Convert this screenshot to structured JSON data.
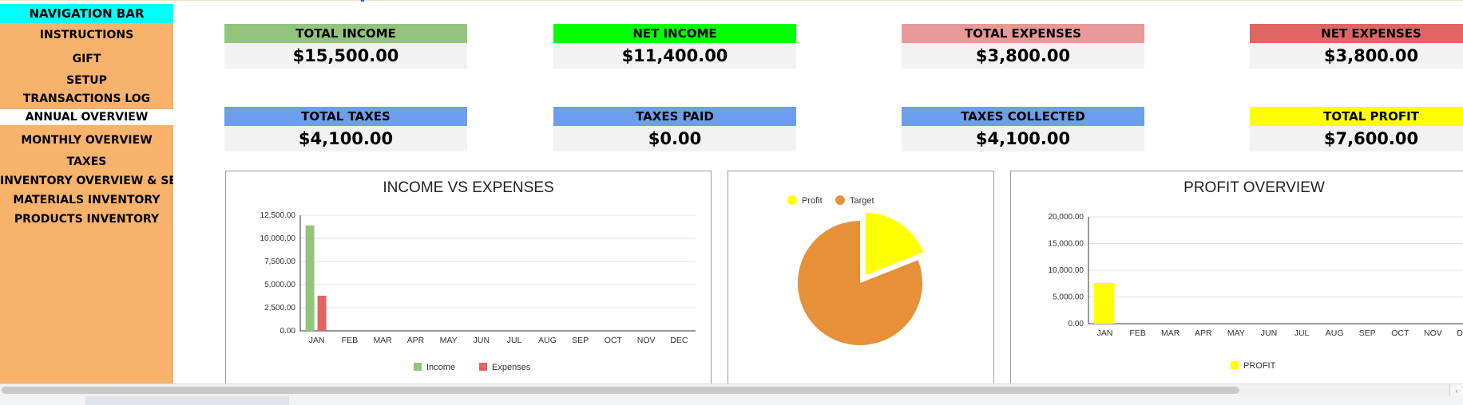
{
  "sidebar": {
    "title": "NAVIGATION BAR",
    "items": [
      {
        "label": "INSTRUCTIONS"
      },
      {
        "label": "GIFT"
      },
      {
        "label": "SETUP"
      },
      {
        "label": "TRANSACTIONS LOG"
      },
      {
        "label": "ANNUAL OVERVIEW"
      },
      {
        "label": "MONTHLY OVERVIEW"
      },
      {
        "label": "TAXES"
      },
      {
        "label": "INVENTORY OVERVIEW & SETUP"
      },
      {
        "label": "MATERIALS INVENTORY"
      },
      {
        "label": "PRODUCTS INVENTORY"
      }
    ]
  },
  "kpis": {
    "total_income": {
      "label": "TOTAL INCOME",
      "value": "$15,500.00",
      "color": "#93c47d"
    },
    "net_income": {
      "label": "NET INCOME",
      "value": "$11,400.00",
      "color": "#00ff00"
    },
    "total_expenses": {
      "label": "TOTAL EXPENSES",
      "value": "$3,800.00",
      "color": "#ea9999"
    },
    "net_expenses": {
      "label": "NET EXPENSES",
      "value": "$3,800.00",
      "color": "#e06666"
    },
    "total_taxes": {
      "label": "TOTAL TAXES",
      "value": "$4,100.00",
      "color": "#6d9eeb"
    },
    "taxes_paid": {
      "label": "TAXES PAID",
      "value": "$0.00",
      "color": "#6d9eeb"
    },
    "taxes_collected": {
      "label": "TAXES COLLECTED",
      "value": "$4,100.00",
      "color": "#6d9eeb"
    },
    "total_profit": {
      "label": "TOTAL PROFIT",
      "value": "$7,600.00",
      "color": "#ffff00"
    }
  },
  "chart_data": [
    {
      "type": "bar",
      "title": "INCOME VS EXPENSES",
      "categories": [
        "JAN",
        "FEB",
        "MAR",
        "APR",
        "MAY",
        "JUN",
        "JUL",
        "AUG",
        "SEP",
        "OCT",
        "NOV",
        "DEC"
      ],
      "series": [
        {
          "name": "Income",
          "color": "#93c47d",
          "values": [
            11400,
            0,
            0,
            0,
            0,
            0,
            0,
            0,
            0,
            0,
            0,
            0
          ]
        },
        {
          "name": "Expenses",
          "color": "#e06666",
          "values": [
            3800,
            0,
            0,
            0,
            0,
            0,
            0,
            0,
            0,
            0,
            0,
            0
          ]
        }
      ],
      "yticks": [
        "12,500.00",
        "10,000.00",
        "7,500.00",
        "5,000.00",
        "2,500.00",
        "0.00"
      ],
      "ylim": [
        0,
        12500
      ],
      "grid": true,
      "legend": "bottom"
    },
    {
      "type": "pie",
      "title": "",
      "labels": [
        "Profit",
        "Target"
      ],
      "values": [
        7600,
        32400
      ],
      "colors": [
        "#ffff00",
        "#e69138"
      ],
      "exploded": "Profit",
      "legend": "top"
    },
    {
      "type": "bar",
      "title": "PROFIT OVERVIEW",
      "categories": [
        "JAN",
        "FEB",
        "MAR",
        "APR",
        "MAY",
        "JUN",
        "JUL",
        "AUG",
        "SEP",
        "OCT",
        "NOV",
        "DEC"
      ],
      "series": [
        {
          "name": "PROFIT",
          "color": "#ffff00",
          "values": [
            7600,
            0,
            0,
            0,
            0,
            0,
            0,
            0,
            0,
            0,
            0,
            0
          ]
        }
      ],
      "yticks": [
        "20,000.00",
        "15,000.00",
        "10,000.00",
        "5,000.00",
        "0.00"
      ],
      "ylim": [
        0,
        20000
      ],
      "grid": true,
      "legend": "bottom"
    }
  ],
  "scrollbar": {
    "arrow_icon": "chevron-left-icon",
    "arrow_glyph": "‹"
  }
}
